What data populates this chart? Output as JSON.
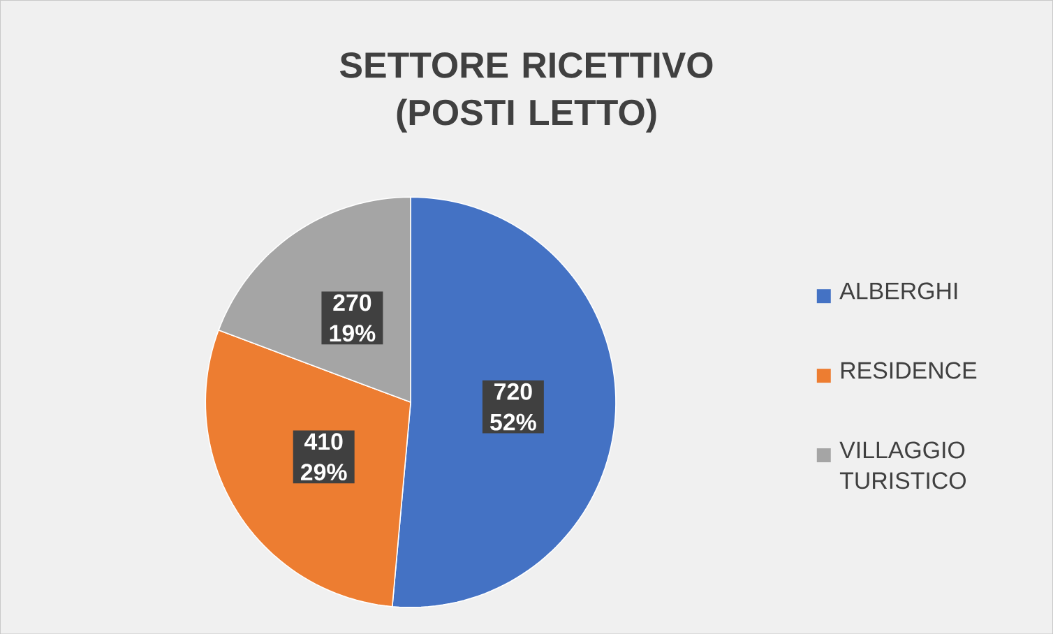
{
  "chart_data": {
    "type": "pie",
    "title": "SETTORE RICETTIVO (POSTI LETTO)",
    "categories": [
      "ALBERGHI",
      "RESIDENCE",
      "VILLAGGIO TURISTICO"
    ],
    "values": [
      720,
      410,
      270
    ],
    "colors": [
      "#4472c4",
      "#ed7d31",
      "#a5a5a5"
    ],
    "value_labels": [
      "720 52%",
      "410 29%",
      "270 19%"
    ],
    "legend": "right"
  }
}
